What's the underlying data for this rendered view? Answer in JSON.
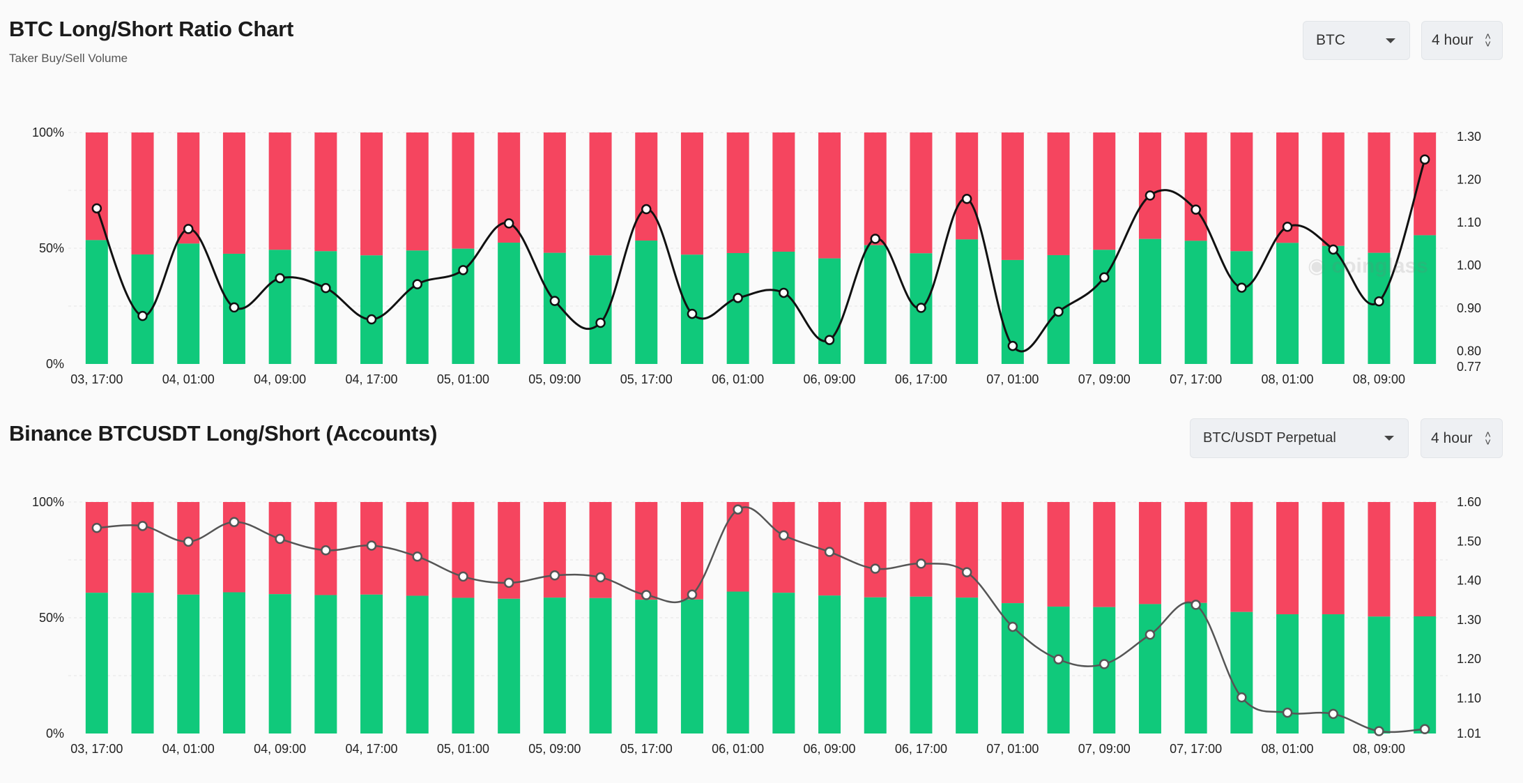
{
  "panels": [
    {
      "title": "BTC Long/Short Ratio Chart",
      "subtitle": "Taker Buy/Sell Volume",
      "symbol_select": "BTC",
      "interval_select": "4 hour"
    },
    {
      "title": "Binance BTCUSDT Long/Short (Accounts)",
      "subtitle": "",
      "symbol_select": "BTC/USDT Perpetual",
      "interval_select": "4 hour"
    }
  ],
  "watermark": "coinglass",
  "colors": {
    "long": "#10c97b",
    "short": "#f5455f",
    "line": "#111111",
    "line2": "#555555",
    "grid": "#e4e4e4"
  },
  "chart_data": [
    {
      "type": "bar",
      "stacked": true,
      "title": "BTC Long/Short Ratio Chart",
      "left_axis": {
        "ticks": [
          "0%",
          "50%",
          "100%"
        ],
        "range": [
          0,
          100
        ]
      },
      "right_axis": {
        "ticks": [
          "0.77",
          "0.80",
          "0.90",
          "1.00",
          "1.10",
          "1.20",
          "1.30"
        ],
        "range": [
          0.77,
          1.31
        ]
      },
      "x_tick_labels": [
        "03, 17:00",
        "04, 01:00",
        "04, 09:00",
        "04, 17:00",
        "05, 01:00",
        "05, 09:00",
        "05, 17:00",
        "06, 01:00",
        "06, 09:00",
        "06, 17:00",
        "07, 01:00",
        "07, 09:00",
        "07, 17:00",
        "08, 01:00",
        "08, 09:00"
      ],
      "x_tick_every": 2,
      "long_pct": [
        53.5,
        47.3,
        52.0,
        47.6,
        49.3,
        48.7,
        46.9,
        49.0,
        49.8,
        52.4,
        48.0,
        46.9,
        53.3,
        47.2,
        47.9,
        48.5,
        45.6,
        51.3,
        47.8,
        53.8,
        44.9,
        47.0,
        49.3,
        54.0,
        53.2,
        48.7,
        52.3,
        51.0,
        48.0,
        55.6
      ],
      "series": [
        {
          "name": "Long/Short Ratio",
          "axis": "right",
          "values": [
            1.133,
            0.882,
            1.085,
            0.902,
            0.97,
            0.947,
            0.874,
            0.956,
            0.989,
            1.098,
            0.917,
            0.866,
            1.131,
            0.887,
            0.924,
            0.936,
            0.826,
            1.062,
            0.901,
            1.155,
            0.812,
            0.892,
            0.972,
            1.163,
            1.13,
            0.948,
            1.09,
            1.037,
            0.916,
            1.247
          ]
        }
      ]
    },
    {
      "type": "bar",
      "stacked": true,
      "title": "Binance BTCUSDT Long/Short (Accounts)",
      "left_axis": {
        "ticks": [
          "0%",
          "50%",
          "100%"
        ],
        "range": [
          0,
          100
        ]
      },
      "right_axis": {
        "ticks": [
          "1.01",
          "1.10",
          "1.20",
          "1.30",
          "1.40",
          "1.50",
          "1.60"
        ],
        "range": [
          1.01,
          1.6
        ]
      },
      "x_tick_labels": [
        "03, 17:00",
        "04, 01:00",
        "04, 09:00",
        "04, 17:00",
        "05, 01:00",
        "05, 09:00",
        "05, 17:00",
        "06, 01:00",
        "06, 09:00",
        "06, 17:00",
        "07, 01:00",
        "07, 09:00",
        "07, 17:00",
        "08, 01:00",
        "08, 09:00"
      ],
      "x_tick_every": 2,
      "long_pct": [
        60.8,
        60.8,
        60.0,
        61.0,
        60.2,
        59.8,
        60.0,
        59.5,
        58.6,
        58.2,
        58.7,
        58.5,
        57.8,
        57.9,
        61.3,
        60.8,
        59.6,
        58.8,
        59.1,
        58.7,
        56.3,
        54.8,
        54.6,
        55.9,
        56.4,
        52.5,
        51.5,
        51.5,
        50.5,
        50.6
      ],
      "series": [
        {
          "name": "Long/Short Ratio",
          "axis": "right",
          "values": [
            1.534,
            1.539,
            1.499,
            1.549,
            1.506,
            1.477,
            1.489,
            1.461,
            1.41,
            1.394,
            1.413,
            1.408,
            1.363,
            1.364,
            1.581,
            1.515,
            1.473,
            1.43,
            1.443,
            1.421,
            1.282,
            1.199,
            1.187,
            1.262,
            1.338,
            1.102,
            1.063,
            1.06,
            1.016,
            1.021
          ]
        }
      ]
    }
  ]
}
